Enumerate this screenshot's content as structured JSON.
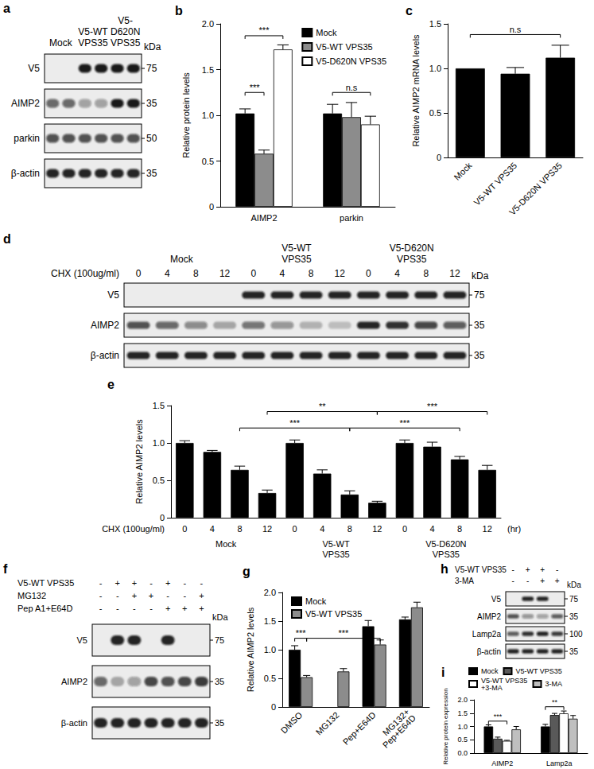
{
  "chart_data": [
    {
      "title": "b",
      "type": "bar",
      "ylabel": "Relative protein levels",
      "categories": [
        "AIMP2",
        "parkin"
      ],
      "series": [
        {
          "name": "Mock",
          "color": "#000000",
          "values": [
            1.02,
            1.02
          ],
          "errors": [
            0.05,
            0.1
          ]
        },
        {
          "name": "V5-WT VPS35",
          "color": "#8c8c8c",
          "values": [
            0.58,
            0.98
          ],
          "errors": [
            0.04,
            0.16
          ]
        },
        {
          "name": "V5-D620N VPS35",
          "color": "#ffffff",
          "values": [
            1.72,
            0.9
          ],
          "errors": [
            0.05,
            0.09
          ]
        }
      ],
      "ylim": [
        0,
        2
      ],
      "yticks": [
        0,
        0.5,
        {
          "value": 1,
          "label": "1.0"
        },
        1.5,
        {
          "value": 2,
          "label": "2.0"
        }
      ],
      "legend": "top-right",
      "annotations": [
        {
          "text": "***",
          "from": {
            "category": "AIMP2",
            "series": "Mock"
          },
          "to": {
            "category": "AIMP2",
            "series": "V5-WT VPS35"
          },
          "y": 1.25
        },
        {
          "text": "***",
          "from": {
            "category": "AIMP2",
            "series": "Mock"
          },
          "to": {
            "category": "AIMP2",
            "series": "V5-D620N VPS35"
          },
          "y": 1.87
        },
        {
          "text": "n.s",
          "from": {
            "category": "parkin",
            "series": "Mock"
          },
          "to": {
            "category": "parkin",
            "series": "V5-D620N VPS35"
          },
          "y": 1.25
        }
      ]
    },
    {
      "title": "c",
      "type": "bar",
      "ylabel": "Relative AIMP2 mRNA levels",
      "categories": [
        "Mock",
        "V5-WT VPS35",
        "V5-D620N VPS35"
      ],
      "values": [
        1.0,
        0.94,
        1.12
      ],
      "errors": [
        null,
        0.07,
        0.14
      ],
      "color": "#000000",
      "ylim": [
        0,
        1.5
      ],
      "yticks": [
        0,
        0.5,
        {
          "value": 1,
          "label": "1.0"
        },
        1.5
      ],
      "annotations": [
        {
          "text": "n.s",
          "from": {
            "category": "Mock"
          },
          "to": {
            "category": "V5-D620N VPS35"
          },
          "y": 1.38
        }
      ]
    },
    {
      "title": "e",
      "type": "bar",
      "ylabel": "Relative AIMP2 levels",
      "xlabel": "CHX (100ug/ml)",
      "xunit": "(hr)",
      "groups": [
        "Mock",
        "V5-WT\nVPS35",
        "V5-D620N\nVPS35"
      ],
      "categories": [
        "0",
        "4",
        "8",
        "12",
        "0",
        "4",
        "8",
        "12",
        "0",
        "4",
        "8",
        "12"
      ],
      "values": [
        1.0,
        0.88,
        0.64,
        0.33,
        1.0,
        0.59,
        0.31,
        0.2,
        1.0,
        0.95,
        0.78,
        0.64
      ],
      "errors": [
        0.03,
        0.02,
        0.05,
        0.04,
        0.04,
        0.05,
        0.05,
        0.02,
        0.04,
        0.06,
        0.04,
        0.06
      ],
      "color": "#000000",
      "ylim": [
        0,
        1.5
      ],
      "yticks": [
        0,
        0.5,
        {
          "value": 1,
          "label": "1.0"
        },
        1.5
      ],
      "annotations": [
        {
          "text": "***",
          "from": {
            "group": "Mock",
            "category": "8"
          },
          "to": {
            "group": "V5-WT\nVPS35",
            "category": "8"
          },
          "y": 1.2
        },
        {
          "text": "***",
          "from": {
            "group": "V5-WT\nVPS35",
            "category": "8"
          },
          "to": {
            "group": "V5-D620N\nVPS35",
            "category": "8"
          },
          "y": 1.2
        },
        {
          "text": "**",
          "from": {
            "group": "Mock",
            "category": "12"
          },
          "to": {
            "group": "V5-WT\nVPS35",
            "category": "12"
          },
          "y": 1.42
        },
        {
          "text": "***",
          "from": {
            "group": "V5-WT\nVPS35",
            "category": "12"
          },
          "to": {
            "group": "V5-D620N\nVPS35",
            "category": "12"
          },
          "y": 1.42
        }
      ]
    },
    {
      "title": "g",
      "type": "bar",
      "ylabel": "Relative AIMP2 levels",
      "categories": [
        "DMSO",
        "MG132",
        "Pep+E64D",
        "MG132+\nPep+E64D"
      ],
      "series": [
        {
          "name": "Mock",
          "color": "#000000",
          "values": [
            1.0,
            null,
            1.41,
            1.53
          ],
          "errors": [
            0.07,
            null,
            0.1,
            0.04
          ]
        },
        {
          "name": "V5-WT VPS35",
          "color": "#8c8c8c",
          "values": [
            0.52,
            0.62,
            1.09,
            1.74
          ],
          "errors": [
            0.03,
            0.05,
            0.08,
            0.09
          ]
        }
      ],
      "ylim": [
        0,
        2
      ],
      "yticks": [
        0,
        0.5,
        {
          "value": 1,
          "label": "1.0"
        },
        1.5,
        {
          "value": 2,
          "label": "2.0"
        }
      ],
      "legend": "top-left",
      "annotations": [
        {
          "text": "***",
          "from": {
            "category": "DMSO",
            "series": "Mock"
          },
          "to": {
            "category": "DMSO",
            "series": "V5-WT VPS35"
          },
          "y": 1.2
        },
        {
          "text": "***",
          "from": {
            "category": "DMSO",
            "series": "V5-WT VPS35"
          },
          "to": {
            "category": "Pep+E64D",
            "series": "V5-WT VPS35"
          },
          "y": 1.2
        }
      ]
    },
    {
      "title": "i",
      "type": "bar",
      "ylabel": "Relative protein expression",
      "categories": [
        "AIMP2",
        "Lamp2a"
      ],
      "series": [
        {
          "name": "Mock",
          "color": "#000000",
          "values": [
            1.0,
            1.0
          ],
          "errors": [
            0.06,
            0.08
          ]
        },
        {
          "name": "V5-WT VPS35",
          "color": "#595959",
          "values": [
            0.54,
            1.43
          ],
          "errors": [
            0.06,
            0.06
          ]
        },
        {
          "name": "V5-WT VPS35\n+3-MA",
          "color": "#ffffff",
          "values": [
            0.46,
            1.49
          ],
          "errors": [
            0.02,
            0.09
          ]
        },
        {
          "name": "3-MA",
          "color": "#bfbfbf",
          "values": [
            0.89,
            1.29
          ],
          "errors": [
            0.11,
            0.12
          ]
        }
      ],
      "ylim": [
        0,
        2
      ],
      "yticks": [
        {
          "value": 0,
          "label": "0.0"
        },
        0.5,
        {
          "value": 1,
          "label": "1.0"
        },
        1.5,
        {
          "value": 2,
          "label": "2.0"
        }
      ],
      "legend": "top-left",
      "annotations": [
        {
          "text": "***",
          "from": {
            "category": "AIMP2",
            "series": "Mock"
          },
          "to": {
            "category": "AIMP2",
            "series": "V5-WT VPS35\n+3-MA"
          },
          "y": 1.2
        },
        {
          "text": "**",
          "from": {
            "category": "Lamp2a",
            "series": "Mock"
          },
          "to": {
            "category": "Lamp2a",
            "series": "V5-WT VPS35\n+3-MA"
          },
          "y": 1.74
        }
      ]
    }
  ],
  "blots": [
    {
      "panel": "a",
      "marker_unit": "kDa",
      "groups": [
        {
          "label": "Mock",
          "lane_count": 2
        },
        {
          "label": "V5-WT\nVPS35",
          "lane_count": 2
        },
        {
          "label": "V5-\nD620N\nVPS35",
          "lane_count": 2
        }
      ],
      "rows": [
        {
          "label": "V5",
          "marker": 75,
          "bands": [
            0,
            0,
            0.95,
            0.95,
            0.95,
            0.95
          ]
        },
        {
          "label": "AIMP2",
          "marker": 35,
          "bands": [
            0.6,
            0.6,
            0.35,
            0.35,
            0.95,
            0.95
          ]
        },
        {
          "label": "parkin",
          "marker": 50,
          "bands": [
            0.7,
            0.7,
            0.7,
            0.7,
            0.7,
            0.7
          ]
        },
        {
          "label": "β-actin",
          "marker": 35,
          "bands": [
            0.9,
            0.9,
            0.9,
            0.9,
            0.9,
            0.9
          ]
        }
      ]
    },
    {
      "panel": "d",
      "marker_unit": "kDa",
      "lane_header": "CHX (100ug/ml)",
      "groups": [
        {
          "label": "Mock",
          "lane_labels": [
            "0",
            "4",
            "8",
            "12"
          ]
        },
        {
          "label": "V5-WT\nVPS35",
          "lane_labels": [
            "0",
            "4",
            "8",
            "12"
          ]
        },
        {
          "label": "V5-D620N\nVPS35",
          "lane_labels": [
            "0",
            "4",
            "8",
            "12"
          ]
        }
      ],
      "rows": [
        {
          "label": "V5",
          "marker": 75,
          "bands": [
            0,
            0,
            0,
            0,
            0.9,
            0.9,
            0.9,
            0.9,
            0.9,
            0.9,
            0.9,
            0.9
          ]
        },
        {
          "label": "AIMP2",
          "marker": 35,
          "bands": [
            0.7,
            0.6,
            0.45,
            0.3,
            0.55,
            0.4,
            0.25,
            0.2,
            0.9,
            0.85,
            0.75,
            0.65
          ]
        },
        {
          "label": "β-actin",
          "marker": 35,
          "bands": [
            0.9,
            0.9,
            0.9,
            0.9,
            0.9,
            0.9,
            0.9,
            0.9,
            0.9,
            0.9,
            0.9,
            0.9
          ]
        }
      ]
    },
    {
      "panel": "f",
      "marker_unit": "kDa",
      "treatments": [
        {
          "label": "V5-WT VPS35",
          "signs": [
            "-",
            "+",
            "+",
            "-",
            "+",
            "-",
            "-"
          ]
        },
        {
          "label": "MG132",
          "signs": [
            "-",
            "-",
            "+",
            "+",
            "-",
            "-",
            "+"
          ]
        },
        {
          "label": "Pep A1+E64D",
          "signs": [
            "-",
            "-",
            "-",
            "-",
            "+",
            "+",
            "+"
          ]
        }
      ],
      "rows": [
        {
          "label": "V5",
          "marker": 75,
          "bands": [
            0,
            0.9,
            0.9,
            0,
            0.9,
            0,
            0
          ]
        },
        {
          "label": "AIMP2",
          "marker": 35,
          "bands": [
            0.6,
            0.3,
            0.35,
            0.75,
            0.7,
            0.75,
            0.8
          ]
        },
        {
          "label": "β-actin",
          "marker": 35,
          "bands": [
            0.9,
            0.9,
            0.9,
            0.9,
            0.9,
            0.9,
            0.9
          ]
        }
      ]
    },
    {
      "panel": "h",
      "marker_unit": "kDa",
      "treatments": [
        {
          "label": "V5-WT VPS35",
          "signs": [
            "-",
            "+",
            "+",
            "-"
          ]
        },
        {
          "label": "3-MA",
          "signs": [
            "-",
            "-",
            "+",
            "+"
          ]
        }
      ],
      "rows": [
        {
          "label": "V5",
          "marker": 75,
          "bands": [
            0,
            0.9,
            0.9,
            0
          ]
        },
        {
          "label": "AIMP2",
          "marker": 35,
          "bands": [
            0.7,
            0.4,
            0.35,
            0.65
          ]
        },
        {
          "label": "Lamp2a",
          "marker": 100,
          "bands": [
            0.65,
            0.85,
            0.9,
            0.8
          ]
        },
        {
          "label": "β-actin",
          "marker": 35,
          "bands": [
            0.9,
            0.9,
            0.9,
            0.9
          ]
        }
      ]
    }
  ]
}
